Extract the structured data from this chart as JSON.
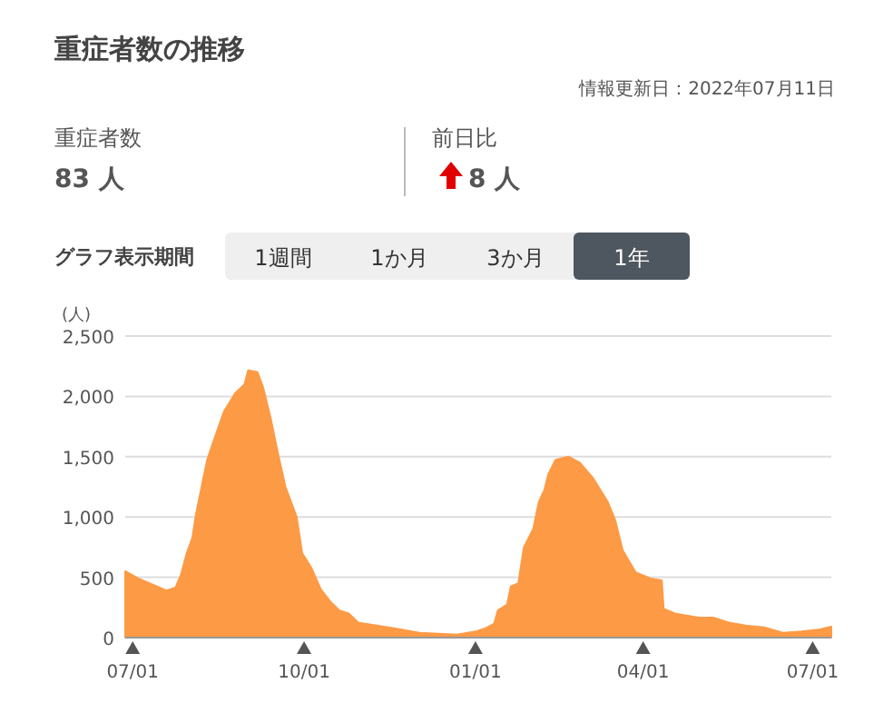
{
  "chart_data": {
    "type": "area",
    "title": "重症者数の推移",
    "subtitle": "情報更新日：2022年07月11日",
    "ylabel": "(人)",
    "annotations": [
      "重症者数",
      "83 人",
      "前日比",
      "8 人",
      "グラフ表示期間",
      "1週間",
      "1か月",
      "3か月",
      "1年"
    ],
    "color": "#fd9a45",
    "x": [
      "2021-06-27",
      "2021-07-04",
      "2021-07-14",
      "2021-07-19",
      "2021-07-24",
      "2021-07-27",
      "2021-07-30",
      "2021-08-02",
      "2021-08-04",
      "2021-08-10",
      "2021-08-15",
      "2021-08-19",
      "2021-08-25",
      "2021-08-30",
      "2021-09-01",
      "2021-09-06",
      "2021-09-09",
      "2021-09-13",
      "2021-09-17",
      "2021-09-21",
      "2021-09-27",
      "2021-09-30",
      "2021-10-05",
      "2021-10-10",
      "2021-10-15",
      "2021-10-20",
      "2021-10-25",
      "2021-10-30",
      "2021-11-09",
      "2021-11-19",
      "2021-12-02",
      "2021-12-22",
      "2022-01-01",
      "2022-01-06",
      "2022-01-11",
      "2022-01-13",
      "2022-01-18",
      "2022-01-20",
      "2022-01-24",
      "2022-01-27",
      "2022-02-01",
      "2022-02-04",
      "2022-02-07",
      "2022-02-09",
      "2022-02-13",
      "2022-02-20",
      "2022-02-26",
      "2022-03-05",
      "2022-03-13",
      "2022-03-17",
      "2022-03-21",
      "2022-03-28",
      "2022-04-05",
      "2022-04-11",
      "2022-04-12",
      "2022-04-18",
      "2022-05-01",
      "2022-05-09",
      "2022-05-17",
      "2022-05-26",
      "2022-06-05",
      "2022-06-15",
      "2022-06-25",
      "2022-07-04",
      "2022-07-11"
    ],
    "values": [
      550,
      490,
      425,
      390,
      415,
      525,
      700,
      825,
      1025,
      1475,
      1700,
      1875,
      2025,
      2100,
      2215,
      2200,
      2075,
      1825,
      1525,
      1250,
      1000,
      700,
      575,
      400,
      300,
      225,
      200,
      125,
      100,
      75,
      40,
      25,
      50,
      75,
      115,
      225,
      275,
      425,
      450,
      750,
      900,
      1125,
      1225,
      1350,
      1475,
      1500,
      1450,
      1325,
      1125,
      975,
      725,
      540,
      490,
      475,
      240,
      200,
      165,
      165,
      125,
      100,
      85,
      40,
      50,
      65,
      90
    ],
    "xlim": [
      "2021-06-27",
      "2022-07-11"
    ],
    "ylim": [
      0,
      2500
    ],
    "yticks": [
      0,
      {
        "value": 500,
        "label": "500"
      },
      {
        "value": 1000,
        "label": "1,000"
      },
      {
        "value": 1500,
        "label": "1,500"
      },
      {
        "value": 2000,
        "label": "2,000"
      },
      {
        "value": 2500,
        "label": "2,500"
      }
    ],
    "xticks": [
      {
        "value": "2021-07-01",
        "label": "07/01"
      },
      {
        "value": "2021-10-01",
        "label": "10/01"
      },
      {
        "value": "2022-01-01",
        "label": "01/01"
      },
      {
        "value": "2022-04-01",
        "label": "04/01"
      },
      {
        "value": "2022-07-01",
        "label": "07/01"
      }
    ],
    "grid": "y"
  }
}
